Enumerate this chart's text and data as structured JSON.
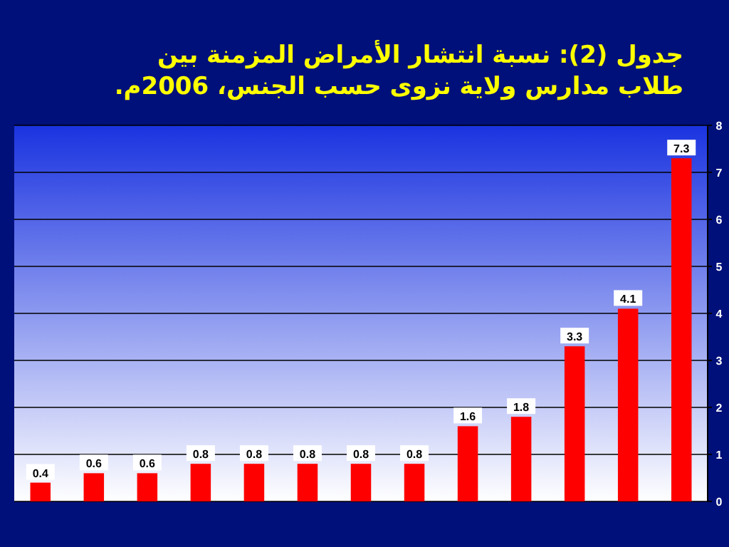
{
  "chart_data": {
    "type": "bar",
    "title": "جدول (2): نسبة انتشار الأمراض المزمنة بين طلاب مدارس ولاية نزوى حسب الجنس، 2006م.",
    "categories": [
      null,
      null,
      null,
      null,
      null,
      null,
      null,
      null,
      null,
      null,
      null,
      null,
      null
    ],
    "values": [
      0.4,
      0.6,
      0.6,
      0.8,
      0.8,
      0.8,
      0.8,
      0.8,
      1.6,
      1.8,
      3.3,
      4.1,
      7.3
    ],
    "color": "#ff0000",
    "ylim": [
      0,
      8
    ],
    "yticks": [
      0,
      1,
      2,
      3,
      4,
      5,
      6,
      7,
      8
    ],
    "grid": "y",
    "data_labels": true
  }
}
